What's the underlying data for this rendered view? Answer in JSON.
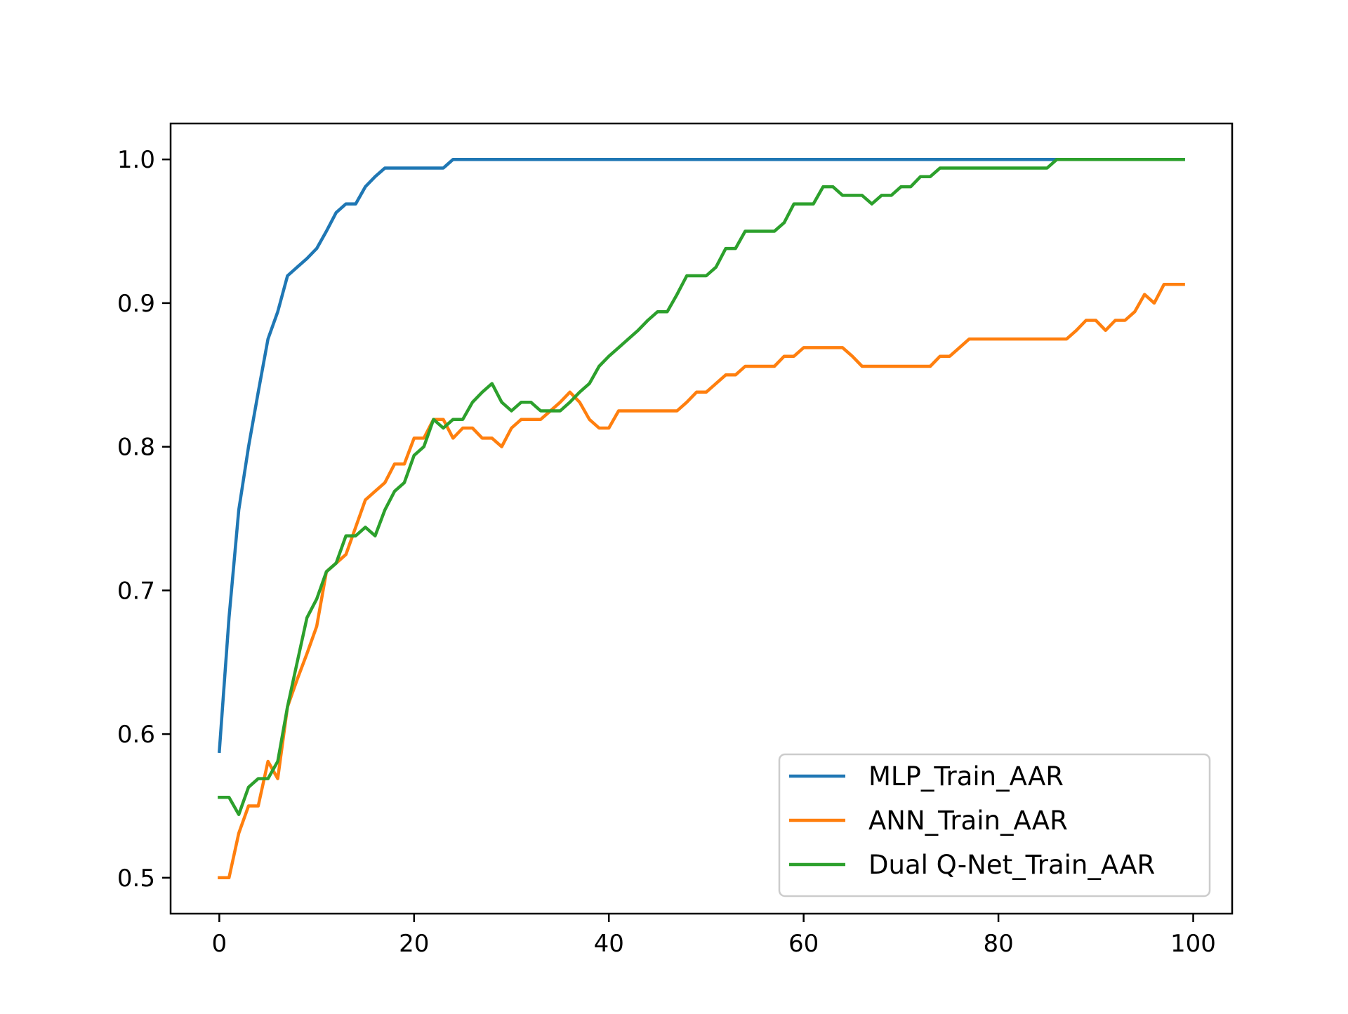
{
  "chart_data": {
    "type": "line",
    "title": "",
    "xlabel": "",
    "ylabel": "",
    "xlim": [
      -5,
      104
    ],
    "ylim": [
      0.475,
      1.025
    ],
    "xticks": [
      0,
      20,
      40,
      60,
      80,
      100
    ],
    "xtick_labels": [
      "0",
      "20",
      "40",
      "60",
      "80",
      "100"
    ],
    "yticks": [
      0.5,
      0.6,
      0.7,
      0.8,
      0.9,
      1.0
    ],
    "ytick_labels": [
      "0.5",
      "0.6",
      "0.7",
      "0.8",
      "0.9",
      "1.0"
    ],
    "grid": false,
    "legend_position": "lower-right",
    "x": [
      0,
      1,
      2,
      3,
      4,
      5,
      6,
      7,
      8,
      9,
      10,
      11,
      12,
      13,
      14,
      15,
      16,
      17,
      18,
      19,
      20,
      21,
      22,
      23,
      24,
      25,
      26,
      27,
      28,
      29,
      30,
      31,
      32,
      33,
      34,
      35,
      36,
      37,
      38,
      39,
      40,
      41,
      42,
      43,
      44,
      45,
      46,
      47,
      48,
      49,
      50,
      51,
      52,
      53,
      54,
      55,
      56,
      57,
      58,
      59,
      60,
      61,
      62,
      63,
      64,
      65,
      66,
      67,
      68,
      69,
      70,
      71,
      72,
      73,
      74,
      75,
      76,
      77,
      78,
      79,
      80,
      81,
      82,
      83,
      84,
      85,
      86,
      87,
      88,
      89,
      90,
      91,
      92,
      93,
      94,
      95,
      96,
      97,
      98,
      99
    ],
    "series": [
      {
        "name": "MLP_Train_AAR",
        "color": "#1f77b4",
        "values": [
          0.588,
          0.681,
          0.756,
          0.8,
          0.838,
          0.875,
          0.894,
          0.919,
          0.925,
          0.931,
          0.938,
          0.95,
          0.963,
          0.969,
          0.969,
          0.981,
          0.988,
          0.994,
          0.994,
          0.994,
          0.994,
          0.994,
          0.994,
          0.994,
          1.0,
          1.0,
          1.0,
          1.0,
          1.0,
          1.0,
          1.0,
          1.0,
          1.0,
          1.0,
          1.0,
          1.0,
          1.0,
          1.0,
          1.0,
          1.0,
          1.0,
          1.0,
          1.0,
          1.0,
          1.0,
          1.0,
          1.0,
          1.0,
          1.0,
          1.0,
          1.0,
          1.0,
          1.0,
          1.0,
          1.0,
          1.0,
          1.0,
          1.0,
          1.0,
          1.0,
          1.0,
          1.0,
          1.0,
          1.0,
          1.0,
          1.0,
          1.0,
          1.0,
          1.0,
          1.0,
          1.0,
          1.0,
          1.0,
          1.0,
          1.0,
          1.0,
          1.0,
          1.0,
          1.0,
          1.0,
          1.0,
          1.0,
          1.0,
          1.0,
          1.0,
          1.0,
          1.0,
          1.0,
          1.0,
          1.0,
          1.0,
          1.0,
          1.0,
          1.0,
          1.0,
          1.0,
          1.0,
          1.0,
          1.0,
          1.0
        ]
      },
      {
        "name": "ANN_Train_AAR",
        "color": "#ff7f0e",
        "values": [
          0.5,
          0.5,
          0.531,
          0.55,
          0.55,
          0.581,
          0.569,
          0.619,
          0.638,
          0.656,
          0.675,
          0.713,
          0.719,
          0.725,
          0.744,
          0.763,
          0.769,
          0.775,
          0.788,
          0.788,
          0.806,
          0.806,
          0.819,
          0.819,
          0.806,
          0.813,
          0.813,
          0.806,
          0.806,
          0.8,
          0.813,
          0.819,
          0.819,
          0.819,
          0.825,
          0.831,
          0.838,
          0.831,
          0.819,
          0.813,
          0.813,
          0.825,
          0.825,
          0.825,
          0.825,
          0.825,
          0.825,
          0.825,
          0.831,
          0.838,
          0.838,
          0.844,
          0.85,
          0.85,
          0.856,
          0.856,
          0.856,
          0.856,
          0.863,
          0.863,
          0.869,
          0.869,
          0.869,
          0.869,
          0.869,
          0.863,
          0.856,
          0.856,
          0.856,
          0.856,
          0.856,
          0.856,
          0.856,
          0.856,
          0.863,
          0.863,
          0.869,
          0.875,
          0.875,
          0.875,
          0.875,
          0.875,
          0.875,
          0.875,
          0.875,
          0.875,
          0.875,
          0.875,
          0.881,
          0.888,
          0.888,
          0.881,
          0.888,
          0.888,
          0.894,
          0.906,
          0.9,
          0.913,
          0.913,
          0.913
        ]
      },
      {
        "name": "Dual Q-Net_Train_AAR",
        "color": "#2ca02c",
        "values": [
          0.556,
          0.556,
          0.544,
          0.563,
          0.569,
          0.569,
          0.581,
          0.619,
          0.65,
          0.681,
          0.694,
          0.713,
          0.719,
          0.738,
          0.738,
          0.744,
          0.738,
          0.756,
          0.769,
          0.775,
          0.794,
          0.8,
          0.819,
          0.813,
          0.819,
          0.819,
          0.831,
          0.838,
          0.844,
          0.831,
          0.825,
          0.831,
          0.831,
          0.825,
          0.825,
          0.825,
          0.831,
          0.838,
          0.844,
          0.856,
          0.863,
          0.869,
          0.875,
          0.881,
          0.888,
          0.894,
          0.894,
          0.906,
          0.919,
          0.919,
          0.919,
          0.925,
          0.938,
          0.938,
          0.95,
          0.95,
          0.95,
          0.95,
          0.956,
          0.969,
          0.969,
          0.969,
          0.981,
          0.981,
          0.975,
          0.975,
          0.975,
          0.969,
          0.975,
          0.975,
          0.981,
          0.981,
          0.988,
          0.988,
          0.994,
          0.994,
          0.994,
          0.994,
          0.994,
          0.994,
          0.994,
          0.994,
          0.994,
          0.994,
          0.994,
          0.994,
          1.0,
          1.0,
          1.0,
          1.0,
          1.0,
          1.0,
          1.0,
          1.0,
          1.0,
          1.0,
          1.0,
          1.0,
          1.0,
          1.0
        ]
      }
    ]
  }
}
